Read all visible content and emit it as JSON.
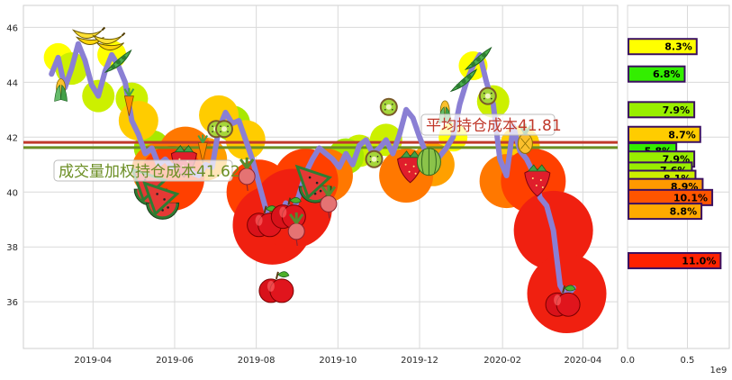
{
  "chart_data": [
    {
      "type": "line",
      "title": "",
      "xlabel": "",
      "ylabel": "",
      "x_ticks": [
        "2019-04",
        "2019-06",
        "2019-08",
        "2019-10",
        "2019-12",
        "2020-02",
        "2020-04"
      ],
      "y_ticks": [
        36,
        38,
        40,
        42,
        44,
        46
      ],
      "ylim": [
        34.3,
        46.8
      ],
      "xlim": [
        "2019-02-08",
        "2020-04-27"
      ],
      "grid": true,
      "colors": {
        "price_line": "#8a7fd4",
        "avg_cost_line": "#c0392b",
        "weighted_cost_line": "#6b8e23",
        "avg_cost_text": "#c0392b",
        "weighted_cost_text": "#6b8e23",
        "bubble_scale": [
          "#ffff00",
          "#ccf000",
          "#a8e800",
          "#ffcc00",
          "#ffa000",
          "#ff7800",
          "#ff4000",
          "#f02010"
        ]
      },
      "series": [
        {
          "type": "line",
          "x": [
            "2019-03-01",
            "2019-03-06",
            "2019-03-11",
            "2019-03-16",
            "2019-03-21",
            "2019-03-26",
            "2019-03-31",
            "2019-04-05",
            "2019-04-10",
            "2019-04-15",
            "2019-04-20",
            "2019-04-25",
            "2019-04-30",
            "2019-05-05",
            "2019-05-10",
            "2019-05-15",
            "2019-05-20",
            "2019-05-25",
            "2019-05-30",
            "2019-06-04",
            "2019-06-09",
            "2019-06-14",
            "2019-06-19",
            "2019-06-24",
            "2019-06-29",
            "2019-07-04",
            "2019-07-09",
            "2019-07-14",
            "2019-07-19",
            "2019-07-24",
            "2019-07-29",
            "2019-08-03",
            "2019-08-08",
            "2019-08-13",
            "2019-08-18",
            "2019-08-23",
            "2019-08-28",
            "2019-09-02",
            "2019-09-07",
            "2019-09-12",
            "2019-09-17",
            "2019-09-22",
            "2019-09-27",
            "2019-10-02",
            "2019-10-07",
            "2019-10-12",
            "2019-10-17",
            "2019-10-22",
            "2019-10-27",
            "2019-11-01",
            "2019-11-06",
            "2019-11-11",
            "2019-11-16",
            "2019-11-21",
            "2019-11-26",
            "2019-12-01",
            "2019-12-06",
            "2019-12-11",
            "2019-12-16",
            "2019-12-21",
            "2019-12-26",
            "2019-12-31",
            "2020-01-05",
            "2020-01-10",
            "2020-01-15",
            "2020-01-20",
            "2020-01-25",
            "2020-01-30",
            "2020-02-04",
            "2020-02-09",
            "2020-02-14",
            "2020-02-19",
            "2020-02-24",
            "2020-02-29",
            "2020-03-05",
            "2020-03-10",
            "2020-03-15",
            "2020-03-20",
            "2020-03-25"
          ],
          "values": [
            44.3,
            44.9,
            43.8,
            44.5,
            45.4,
            44.8,
            43.9,
            43.5,
            44.4,
            45.0,
            44.6,
            44.0,
            42.6,
            42.1,
            41.4,
            41.6,
            41.0,
            41.2,
            40.9,
            41.1,
            41.4,
            40.7,
            40.6,
            41.0,
            40.9,
            42.3,
            42.9,
            42.5,
            42.6,
            41.9,
            41.2,
            40.3,
            39.4,
            38.6,
            38.9,
            39.6,
            39.2,
            39.9,
            40.7,
            41.2,
            41.6,
            41.4,
            41.2,
            40.9,
            41.4,
            41.0,
            41.7,
            41.9,
            41.4,
            41.6,
            41.9,
            41.4,
            42.1,
            43.0,
            42.7,
            42.0,
            41.4,
            41.0,
            41.3,
            41.6,
            42.0,
            43.2,
            44.0,
            44.6,
            45.0,
            44.0,
            43.2,
            41.2,
            40.6,
            42.4,
            41.5,
            41.2,
            40.7,
            39.8,
            39.5,
            38.6,
            36.6,
            36.2,
            36.5
          ]
        },
        {
          "type": "hline",
          "value": 41.81,
          "label": "平均持仓成本41.81"
        },
        {
          "type": "hline",
          "value": 41.62,
          "label": "成交量加权持仓成本41.62"
        }
      ],
      "annotations": [
        {
          "text": "平均持仓成本41.81"
        },
        {
          "text": "成交量加权持仓成本41.62"
        }
      ],
      "icons": [
        {
          "name": "banana-icon",
          "x": "2019-03-28",
          "y": 45.7
        },
        {
          "name": "banana-icon",
          "x": "2019-04-12",
          "y": 45.5
        },
        {
          "name": "pea-pod-icon",
          "x": "2019-04-20",
          "y": 44.7
        },
        {
          "name": "corn-icon",
          "x": "2019-03-08",
          "y": 43.7
        },
        {
          "name": "carrot-icon",
          "x": "2019-04-28",
          "y": 43.3
        },
        {
          "name": "watermelon-icon",
          "x": "2019-05-14",
          "y": 40.3
        },
        {
          "name": "watermelon-icon",
          "x": "2019-05-23",
          "y": 39.8
        },
        {
          "name": "strawberry-icon",
          "x": "2019-06-08",
          "y": 41.2
        },
        {
          "name": "carrot-icon",
          "x": "2019-06-22",
          "y": 41.6
        },
        {
          "name": "kiwi-icon",
          "x": "2019-07-02",
          "y": 42.3
        },
        {
          "name": "kiwi-icon",
          "x": "2019-07-08",
          "y": 42.3
        },
        {
          "name": "radish-icon",
          "x": "2019-07-25",
          "y": 40.7
        },
        {
          "name": "apple-icon",
          "x": "2019-08-07",
          "y": 38.9
        },
        {
          "name": "apple-icon",
          "x": "2019-08-16",
          "y": 36.5
        },
        {
          "name": "apple-icon",
          "x": "2019-08-25",
          "y": 39.2
        },
        {
          "name": "radish-icon",
          "x": "2019-08-31",
          "y": 38.7
        },
        {
          "name": "watermelon-icon",
          "x": "2019-09-14",
          "y": 40.4
        },
        {
          "name": "radish-icon",
          "x": "2019-09-24",
          "y": 39.7
        },
        {
          "name": "kiwi-icon",
          "x": "2019-10-28",
          "y": 41.2
        },
        {
          "name": "kiwi-icon",
          "x": "2019-11-08",
          "y": 43.1
        },
        {
          "name": "strawberry-icon",
          "x": "2019-11-24",
          "y": 41.0
        },
        {
          "name": "melon-icon",
          "x": "2019-12-08",
          "y": 41.1
        },
        {
          "name": "corn-icon",
          "x": "2019-12-20",
          "y": 42.9
        },
        {
          "name": "pea-pod-icon",
          "x": "2020-01-03",
          "y": 44.0
        },
        {
          "name": "pea-pod-icon",
          "x": "2020-01-14",
          "y": 44.8
        },
        {
          "name": "kiwi-icon",
          "x": "2020-01-21",
          "y": 43.5
        },
        {
          "name": "pineapple-icon",
          "x": "2020-02-18",
          "y": 41.9
        },
        {
          "name": "strawberry-icon",
          "x": "2020-02-27",
          "y": 40.5
        },
        {
          "name": "apple-icon",
          "x": "2020-03-17",
          "y": 36.0
        }
      ],
      "bubbles": [
        {
          "x": "2019-03-06",
          "y": 44.9,
          "level": 0
        },
        {
          "x": "2019-03-16",
          "y": 44.5,
          "level": 1
        },
        {
          "x": "2019-04-05",
          "y": 43.5,
          "level": 1
        },
        {
          "x": "2019-04-15",
          "y": 45.0,
          "level": 0
        },
        {
          "x": "2019-04-30",
          "y": 43.4,
          "level": 1
        },
        {
          "x": "2019-05-05",
          "y": 42.6,
          "level": 3
        },
        {
          "x": "2019-05-15",
          "y": 41.6,
          "level": 2
        },
        {
          "x": "2019-05-20",
          "y": 40.8,
          "level": 5
        },
        {
          "x": "2019-05-30",
          "y": 40.5,
          "level": 6
        },
        {
          "x": "2019-06-09",
          "y": 41.4,
          "level": 5
        },
        {
          "x": "2019-06-24",
          "y": 41.2,
          "level": 4
        },
        {
          "x": "2019-07-04",
          "y": 42.8,
          "level": 3
        },
        {
          "x": "2019-07-14",
          "y": 42.5,
          "level": 2
        },
        {
          "x": "2019-07-24",
          "y": 41.9,
          "level": 3
        },
        {
          "x": "2019-08-03",
          "y": 40.0,
          "level": 6
        },
        {
          "x": "2019-08-13",
          "y": 38.8,
          "level": 7
        },
        {
          "x": "2019-08-28",
          "y": 39.4,
          "level": 7
        },
        {
          "x": "2019-09-07",
          "y": 40.4,
          "level": 6
        },
        {
          "x": "2019-09-22",
          "y": 40.6,
          "level": 5
        },
        {
          "x": "2019-10-07",
          "y": 41.3,
          "level": 2
        },
        {
          "x": "2019-10-17",
          "y": 41.5,
          "level": 1
        },
        {
          "x": "2019-11-06",
          "y": 41.9,
          "level": 1
        },
        {
          "x": "2019-11-21",
          "y": 40.6,
          "level": 5
        },
        {
          "x": "2019-12-11",
          "y": 41.0,
          "level": 4
        },
        {
          "x": "2019-12-26",
          "y": 42.0,
          "level": 0
        },
        {
          "x": "2020-01-10",
          "y": 44.6,
          "level": 0
        },
        {
          "x": "2020-01-25",
          "y": 43.3,
          "level": 1
        },
        {
          "x": "2020-02-04",
          "y": 40.4,
          "level": 5
        },
        {
          "x": "2020-02-14",
          "y": 41.7,
          "level": 3
        },
        {
          "x": "2020-02-24",
          "y": 40.4,
          "level": 6
        },
        {
          "x": "2020-03-10",
          "y": 38.6,
          "level": 7
        },
        {
          "x": "2020-03-20",
          "y": 36.3,
          "level": 7
        }
      ]
    },
    {
      "type": "bar",
      "orientation": "horizontal",
      "scale_label": "1e9",
      "x_ticks": [
        "0.0",
        "0.5"
      ],
      "xlim": [
        0,
        0.85
      ],
      "ylim": [
        34.3,
        46.8
      ],
      "grid": true,
      "bars": [
        {
          "price": 45.3,
          "value": 0.57,
          "label": "8.3%",
          "color": "#ffff00"
        },
        {
          "price": 44.3,
          "value": 0.47,
          "label": "6.8%",
          "color": "#33ee00"
        },
        {
          "price": 43.0,
          "value": 0.55,
          "label": "7.9%",
          "color": "#99ee00"
        },
        {
          "price": 42.1,
          "value": 0.6,
          "label": "8.7%",
          "color": "#ffcc00"
        },
        {
          "price": 41.5,
          "value": 0.4,
          "label": "5.8%",
          "color": "#33ee00"
        },
        {
          "price": 41.2,
          "value": 0.55,
          "label": "7.9%",
          "color": "#99ee00"
        },
        {
          "price": 40.8,
          "value": 0.53,
          "label": "7.6%",
          "color": "#99ee00"
        },
        {
          "price": 40.5,
          "value": 0.56,
          "label": "8.1%",
          "color": "#ccee00"
        },
        {
          "price": 40.2,
          "value": 0.62,
          "label": "8.9%",
          "color": "#ff9900"
        },
        {
          "price": 39.8,
          "value": 0.7,
          "label": "10.1%",
          "color": "#ff5500"
        },
        {
          "price": 39.3,
          "value": 0.61,
          "label": "8.8%",
          "color": "#ffaa00"
        },
        {
          "price": 37.5,
          "value": 0.77,
          "label": "11.0%",
          "color": "#ff2200"
        }
      ]
    }
  ]
}
